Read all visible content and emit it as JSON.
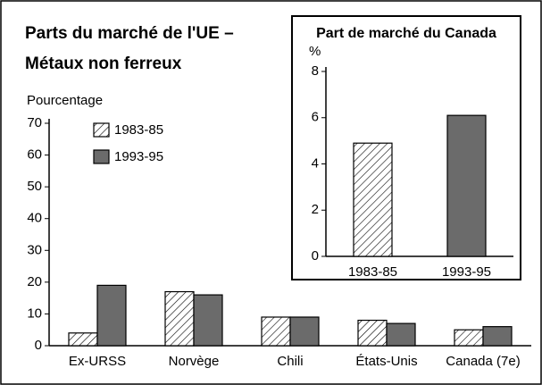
{
  "chart_data": [
    {
      "type": "bar",
      "title_lines": [
        "Parts du marché de l'UE –",
        "Métaux non ferreux"
      ],
      "ylabel": "Pourcentage",
      "categories": [
        "Ex-URSS",
        "Norvège",
        "Chili",
        "États-Unis",
        "Canada (7e)"
      ],
      "series": [
        {
          "name": "1983-85",
          "color": "#000000",
          "pattern": "hatch",
          "values": [
            4,
            17,
            9,
            8,
            5
          ]
        },
        {
          "name": "1993-95",
          "color": "#6b6b6b",
          "pattern": "solid",
          "values": [
            19,
            16,
            9,
            7,
            6
          ]
        }
      ],
      "ylim": [
        0,
        70
      ],
      "yticks": [
        0,
        10,
        20,
        30,
        40,
        50,
        60,
        70
      ],
      "legend": "upper left"
    },
    {
      "type": "bar",
      "title": "Part de marché du Canada",
      "ylabel": "%",
      "categories": [
        "1983-85",
        "1993-95"
      ],
      "values": [
        4.9,
        6.1
      ],
      "colors": [
        "#000000",
        "#6b6b6b"
      ],
      "patterns": [
        "hatch",
        "solid"
      ],
      "ylim": [
        0,
        8
      ],
      "yticks": [
        0,
        2,
        4,
        6,
        8
      ]
    }
  ]
}
